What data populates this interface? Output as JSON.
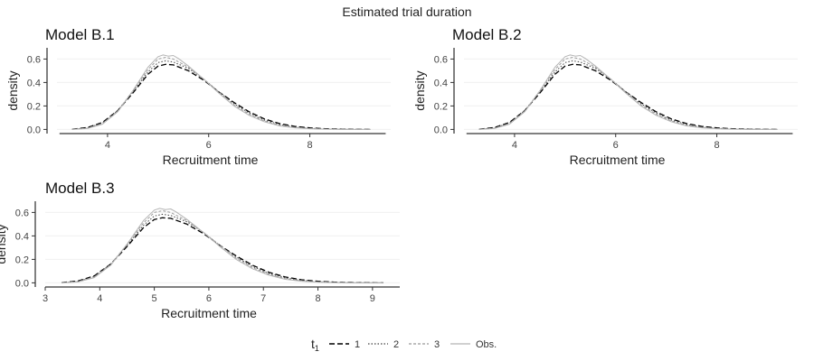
{
  "chart_data": {
    "title": "Estimated trial duration",
    "type": "line",
    "legend": {
      "title_main": "t",
      "title_sub": "1",
      "position": "bottom",
      "entries": [
        {
          "label": "1",
          "dash": "6,3",
          "color": "#000000"
        },
        {
          "label": "2",
          "dash": "1.5,2",
          "color": "#444444"
        },
        {
          "label": "3",
          "dash": "3,2",
          "color": "#999999"
        },
        {
          "label": "Obs.",
          "dash": "",
          "color": "#b0b0b0"
        }
      ]
    },
    "panels": [
      {
        "title": "Model B.1",
        "xlabel": "Recruitment time",
        "ylabel": "density",
        "xlim": [
          3.0,
          9.6
        ],
        "ylim": [
          -0.02,
          0.68
        ],
        "xticks": [
          4,
          6,
          8
        ],
        "yticks": [
          0.0,
          0.2,
          0.4,
          0.6
        ],
        "x_axis_range": [
          3.05,
          9.5
        ]
      },
      {
        "title": "Model B.2",
        "xlabel": "Recruitment time",
        "ylabel": "density",
        "xlim": [
          3.0,
          9.6
        ],
        "ylim": [
          -0.02,
          0.68
        ],
        "xticks": [
          4,
          6,
          8
        ],
        "yticks": [
          0.0,
          0.2,
          0.4,
          0.6
        ],
        "x_axis_range": [
          3.05,
          9.5
        ]
      },
      {
        "title": "Model B.3",
        "xlabel": "Recruitment time",
        "ylabel": "density",
        "xlim": [
          3.0,
          9.5
        ],
        "ylim": [
          -0.02,
          0.68
        ],
        "xticks": [
          3,
          4,
          5,
          6,
          7,
          8,
          9
        ],
        "yticks": [
          0.0,
          0.2,
          0.4,
          0.6
        ],
        "x_axis_range": [
          3.0,
          9.5
        ]
      }
    ],
    "series": [
      {
        "name": "1",
        "x": [
          3.3,
          3.6,
          3.9,
          4.2,
          4.5,
          4.8,
          5.0,
          5.15,
          5.3,
          5.6,
          5.9,
          6.2,
          6.5,
          6.8,
          7.1,
          7.4,
          7.7,
          8.0,
          8.3,
          8.7,
          9.2
        ],
        "y": [
          0.002,
          0.015,
          0.06,
          0.16,
          0.31,
          0.47,
          0.54,
          0.555,
          0.55,
          0.5,
          0.42,
          0.32,
          0.23,
          0.15,
          0.09,
          0.05,
          0.026,
          0.013,
          0.006,
          0.002,
          0.0
        ]
      },
      {
        "name": "2",
        "x": [
          3.3,
          3.6,
          3.9,
          4.2,
          4.5,
          4.8,
          5.0,
          5.15,
          5.3,
          5.6,
          5.9,
          6.2,
          6.5,
          6.8,
          7.1,
          7.4,
          7.7,
          8.0,
          8.3,
          8.7,
          9.2
        ],
        "y": [
          0.001,
          0.012,
          0.055,
          0.16,
          0.32,
          0.49,
          0.57,
          0.585,
          0.575,
          0.52,
          0.43,
          0.32,
          0.22,
          0.14,
          0.08,
          0.042,
          0.02,
          0.009,
          0.004,
          0.001,
          0.0
        ]
      },
      {
        "name": "3",
        "x": [
          3.3,
          3.6,
          3.9,
          4.2,
          4.5,
          4.8,
          5.0,
          5.15,
          5.3,
          5.6,
          5.9,
          6.2,
          6.5,
          6.8,
          7.1,
          7.4,
          7.7,
          8.0,
          8.3,
          8.7,
          9.2
        ],
        "y": [
          0.001,
          0.01,
          0.05,
          0.155,
          0.33,
          0.51,
          0.6,
          0.615,
          0.6,
          0.53,
          0.43,
          0.32,
          0.21,
          0.13,
          0.072,
          0.036,
          0.017,
          0.008,
          0.003,
          0.001,
          0.0
        ]
      },
      {
        "name": "Obs.",
        "x": [
          3.3,
          3.6,
          3.9,
          4.2,
          4.5,
          4.8,
          5.0,
          5.1,
          5.2,
          5.3,
          5.4,
          5.6,
          5.9,
          6.2,
          6.5,
          6.8,
          7.1,
          7.4,
          7.7,
          8.0,
          8.3,
          8.7,
          9.2
        ],
        "y": [
          0.0,
          0.008,
          0.045,
          0.15,
          0.33,
          0.53,
          0.62,
          0.635,
          0.625,
          0.63,
          0.605,
          0.54,
          0.43,
          0.31,
          0.2,
          0.12,
          0.065,
          0.03,
          0.014,
          0.006,
          0.002,
          0.0,
          0.0
        ]
      }
    ]
  }
}
